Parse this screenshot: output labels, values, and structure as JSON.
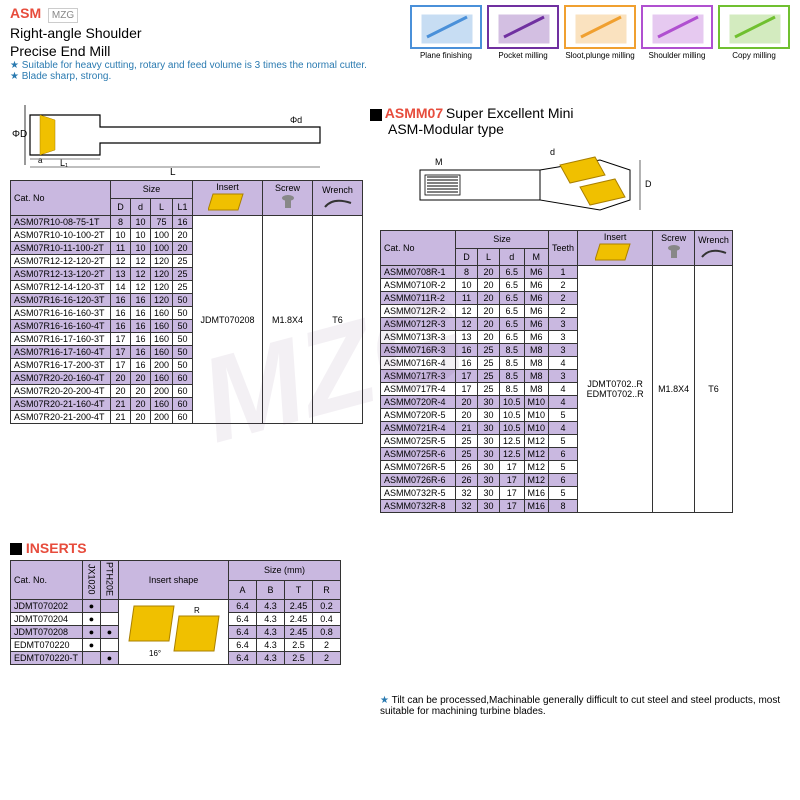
{
  "header": {
    "asm": "ASM",
    "mzg": "MZG",
    "subtitle1": "Right-angle Shoulder",
    "subtitle2": "Precise End Mill"
  },
  "icons": [
    {
      "label": "Plane finishing",
      "color": "#4a90d9"
    },
    {
      "label": "Pocket milling",
      "color": "#7030a0"
    },
    {
      "label": "Sloot,plunge milling",
      "color": "#f0a030"
    },
    {
      "label": "Shoulder milling",
      "color": "#b050d0"
    },
    {
      "label": "Copy milling",
      "color": "#70c030"
    }
  ],
  "bullets": [
    "Suitable for heavy cutting, rotary and feed volume is 3 times the normal cutter.",
    "Blade sharp, strong."
  ],
  "asmm_header": {
    "asmm": "ASMM07",
    "rest": "Super Excellent Mini",
    "sub": "ASM-Modular type"
  },
  "table1": {
    "headers": {
      "cat": "Cat. No",
      "size": "Size",
      "D": "D",
      "d": "d",
      "L": "L",
      "L1": "L1",
      "insert": "Insert",
      "screw": "Screw",
      "wrench": "Wrench"
    },
    "rows": [
      {
        "cat": "ASM07R10-08-75-1T",
        "D": "8",
        "d": "10",
        "L": "75",
        "L1": "16",
        "alt": true
      },
      {
        "cat": "ASM07R10-10-100-2T",
        "D": "10",
        "d": "10",
        "L": "100",
        "L1": "20",
        "alt": false
      },
      {
        "cat": "ASM07R10-11-100-2T",
        "D": "11",
        "d": "10",
        "L": "100",
        "L1": "20",
        "alt": true
      },
      {
        "cat": "ASM07R12-12-120-2T",
        "D": "12",
        "d": "12",
        "L": "120",
        "L1": "25",
        "alt": false
      },
      {
        "cat": "ASM07R12-13-120-2T",
        "D": "13",
        "d": "12",
        "L": "120",
        "L1": "25",
        "alt": true
      },
      {
        "cat": "ASM07R12-14-120-3T",
        "D": "14",
        "d": "12",
        "L": "120",
        "L1": "25",
        "alt": false
      },
      {
        "cat": "ASM07R16-16-120-3T",
        "D": "16",
        "d": "16",
        "L": "120",
        "L1": "50",
        "alt": true
      },
      {
        "cat": "ASM07R16-16-160-3T",
        "D": "16",
        "d": "16",
        "L": "160",
        "L1": "50",
        "alt": false
      },
      {
        "cat": "ASM07R16-16-160-4T",
        "D": "16",
        "d": "16",
        "L": "160",
        "L1": "50",
        "alt": true
      },
      {
        "cat": "ASM07R16-17-160-3T",
        "D": "17",
        "d": "16",
        "L": "160",
        "L1": "50",
        "alt": false
      },
      {
        "cat": "ASM07R16-17-160-4T",
        "D": "17",
        "d": "16",
        "L": "160",
        "L1": "50",
        "alt": true
      },
      {
        "cat": "ASM07R16-17-200-3T",
        "D": "17",
        "d": "16",
        "L": "200",
        "L1": "50",
        "alt": false
      },
      {
        "cat": "ASM07R20-20-160-4T",
        "D": "20",
        "d": "20",
        "L": "160",
        "L1": "60",
        "alt": true
      },
      {
        "cat": "ASM07R20-20-200-4T",
        "D": "20",
        "d": "20",
        "L": "200",
        "L1": "60",
        "alt": false
      },
      {
        "cat": "ASM07R20-21-160-4T",
        "D": "21",
        "d": "20",
        "L": "160",
        "L1": "60",
        "alt": true
      },
      {
        "cat": "ASM07R20-21-200-4T",
        "D": "21",
        "d": "20",
        "L": "200",
        "L1": "60",
        "alt": false
      }
    ],
    "insert": "JDMT070208",
    "screw": "M1.8X4",
    "wrench": "T6"
  },
  "table2": {
    "headers": {
      "cat": "Cat. No",
      "size": "Size",
      "D": "D",
      "L": "L",
      "d": "d",
      "M": "M",
      "teeth": "Teeth",
      "insert": "Insert",
      "screw": "Screw",
      "wrench": "Wrench"
    },
    "rows": [
      {
        "cat": "ASMM0708R-1",
        "D": "8",
        "L": "20",
        "d": "6.5",
        "M": "M6",
        "t": "1",
        "alt": true
      },
      {
        "cat": "ASMM0710R-2",
        "D": "10",
        "L": "20",
        "d": "6.5",
        "M": "M6",
        "t": "2",
        "alt": false
      },
      {
        "cat": "ASMM0711R-2",
        "D": "11",
        "L": "20",
        "d": "6.5",
        "M": "M6",
        "t": "2",
        "alt": true
      },
      {
        "cat": "ASMM0712R-2",
        "D": "12",
        "L": "20",
        "d": "6.5",
        "M": "M6",
        "t": "2",
        "alt": false
      },
      {
        "cat": "ASMM0712R-3",
        "D": "12",
        "L": "20",
        "d": "6.5",
        "M": "M6",
        "t": "3",
        "alt": true
      },
      {
        "cat": "ASMM0713R-3",
        "D": "13",
        "L": "20",
        "d": "6.5",
        "M": "M6",
        "t": "3",
        "alt": false
      },
      {
        "cat": "ASMM0716R-3",
        "D": "16",
        "L": "25",
        "d": "8.5",
        "M": "M8",
        "t": "3",
        "alt": true
      },
      {
        "cat": "ASMM0716R-4",
        "D": "16",
        "L": "25",
        "d": "8.5",
        "M": "M8",
        "t": "4",
        "alt": false
      },
      {
        "cat": "ASMM0717R-3",
        "D": "17",
        "L": "25",
        "d": "8.5",
        "M": "M8",
        "t": "3",
        "alt": true
      },
      {
        "cat": "ASMM0717R-4",
        "D": "17",
        "L": "25",
        "d": "8.5",
        "M": "M8",
        "t": "4",
        "alt": false
      },
      {
        "cat": "ASMM0720R-4",
        "D": "20",
        "L": "30",
        "d": "10.5",
        "M": "M10",
        "t": "4",
        "alt": true
      },
      {
        "cat": "ASMM0720R-5",
        "D": "20",
        "L": "30",
        "d": "10.5",
        "M": "M10",
        "t": "5",
        "alt": false
      },
      {
        "cat": "ASMM0721R-4",
        "D": "21",
        "L": "30",
        "d": "10.5",
        "M": "M10",
        "t": "4",
        "alt": true
      },
      {
        "cat": "ASMM0725R-5",
        "D": "25",
        "L": "30",
        "d": "12.5",
        "M": "M12",
        "t": "5",
        "alt": false
      },
      {
        "cat": "ASMM0725R-6",
        "D": "25",
        "L": "30",
        "d": "12.5",
        "M": "M12",
        "t": "6",
        "alt": true
      },
      {
        "cat": "ASMM0726R-5",
        "D": "26",
        "L": "30",
        "d": "17",
        "M": "M12",
        "t": "5",
        "alt": false
      },
      {
        "cat": "ASMM0726R-6",
        "D": "26",
        "L": "30",
        "d": "17",
        "M": "M12",
        "t": "6",
        "alt": true
      },
      {
        "cat": "ASMM0732R-5",
        "D": "32",
        "L": "30",
        "d": "17",
        "M": "M16",
        "t": "5",
        "alt": false
      },
      {
        "cat": "ASMM0732R-8",
        "D": "32",
        "L": "30",
        "d": "17",
        "M": "M16",
        "t": "8",
        "alt": true
      }
    ],
    "insert1": "JDMT0702..R",
    "insert2": "EDMT0702..R",
    "screw": "M1.8X4",
    "wrench": "T6"
  },
  "inserts_header": "INSERTS",
  "table3": {
    "headers": {
      "cat": "Cat. No.",
      "jx": "JX1020",
      "pt": "PTH20E",
      "shape": "Insert shape",
      "size": "Size (mm)",
      "A": "A",
      "B": "B",
      "T": "T",
      "R": "R"
    },
    "rows": [
      {
        "cat": "JDMT070202",
        "jx": "●",
        "pt": "",
        "A": "6.4",
        "B": "4.3",
        "T": "2.45",
        "R": "0.2",
        "alt": true
      },
      {
        "cat": "JDMT070204",
        "jx": "●",
        "pt": "",
        "A": "6.4",
        "B": "4.3",
        "T": "2.45",
        "R": "0.4",
        "alt": false
      },
      {
        "cat": "JDMT070208",
        "jx": "●",
        "pt": "●",
        "A": "6.4",
        "B": "4.3",
        "T": "2.45",
        "R": "0.8",
        "alt": true
      },
      {
        "cat": "EDMT070220",
        "jx": "●",
        "pt": "",
        "A": "6.4",
        "B": "4.3",
        "T": "2.5",
        "R": "2",
        "alt": false
      },
      {
        "cat": "EDMT070220-T",
        "jx": "",
        "pt": "●",
        "A": "6.4",
        "B": "4.3",
        "T": "2.5",
        "R": "2",
        "alt": true
      }
    ]
  },
  "footnote": "Tilt can be processed,Machinable generally difficult to cut steel and steel products, most suitable for machining turbine blades.",
  "watermark": "MZG"
}
